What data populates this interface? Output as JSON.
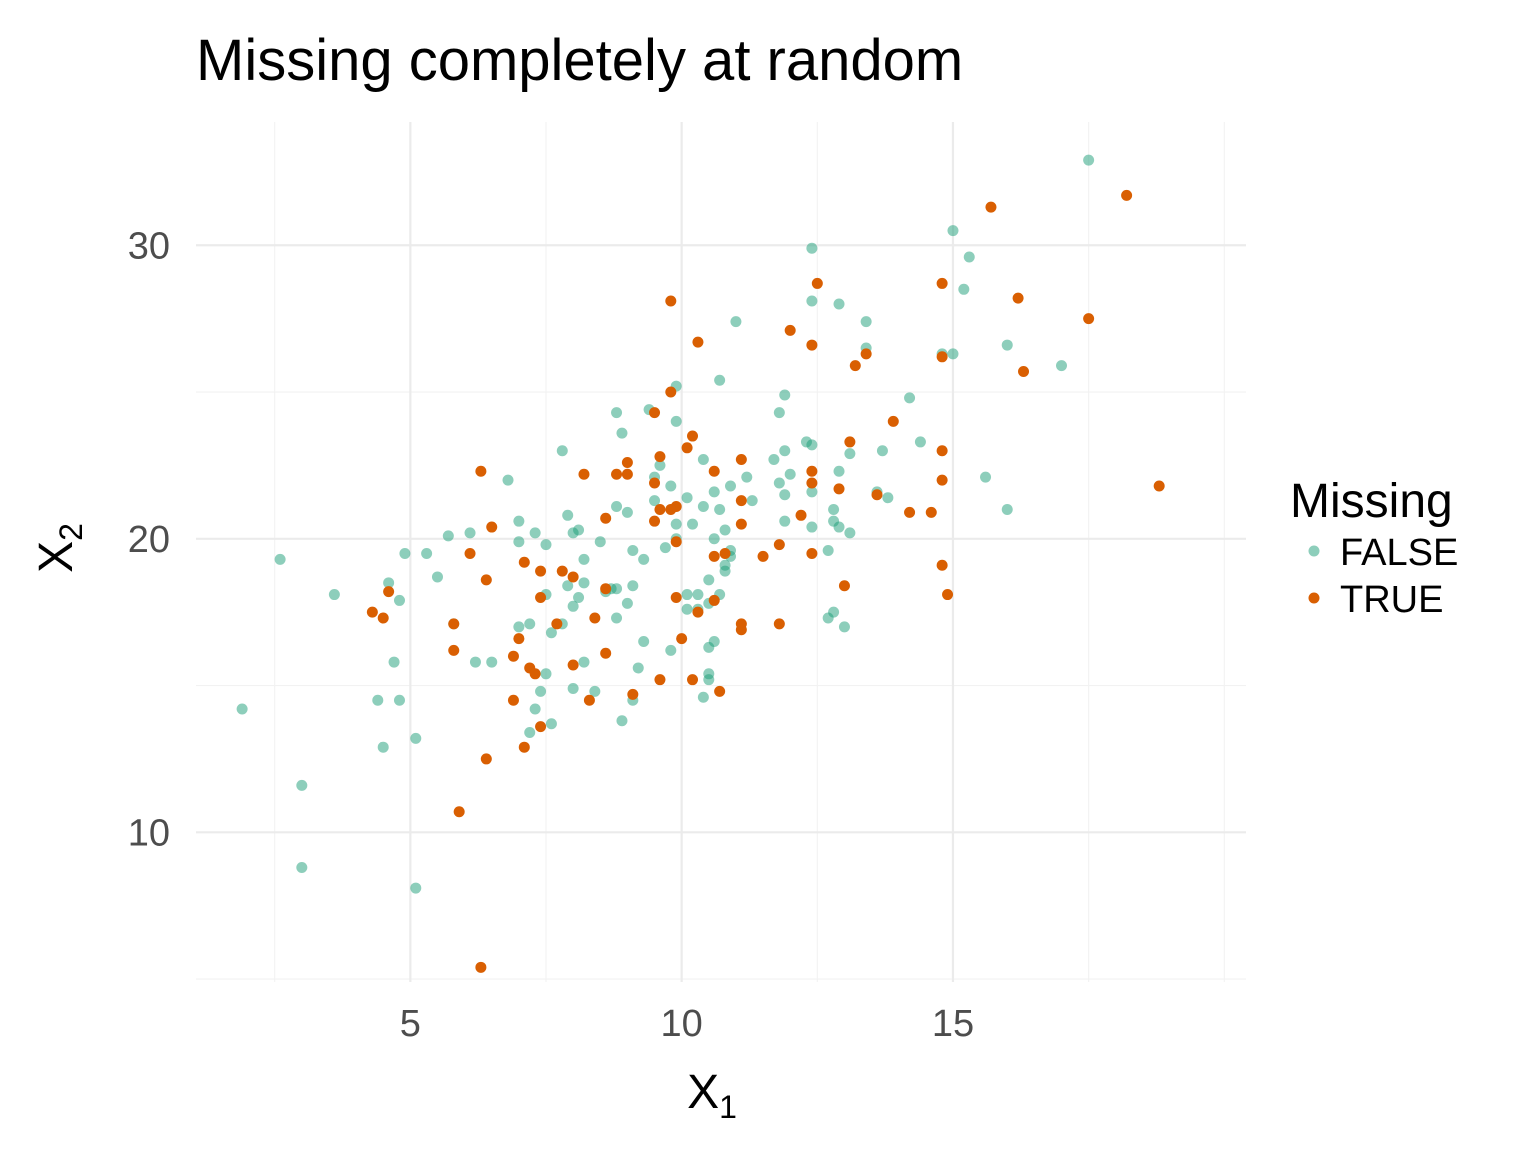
{
  "chart_data": {
    "type": "scatter",
    "title": "Missing completely at random",
    "xlabel": {
      "base": "X",
      "sub": "1"
    },
    "ylabel": {
      "base": "X",
      "sub": "2"
    },
    "xlim": [
      1.05,
      20.4
    ],
    "ylim": [
      4.9,
      34.2
    ],
    "x_ticks": [
      5,
      10,
      15
    ],
    "y_ticks": [
      10,
      20,
      30
    ],
    "x_tick_labels": [
      "5",
      "10",
      "15"
    ],
    "y_tick_labels": [
      "10",
      "20",
      "30"
    ],
    "grid": true,
    "legend_position": "right",
    "legend_title": "Missing",
    "series": [
      {
        "name": "FALSE",
        "color": "#1b9e77",
        "opacity": 0.5,
        "points": [
          [
            17.5,
            32.9
          ],
          [
            15.0,
            30.5
          ],
          [
            15.3,
            29.6
          ],
          [
            12.4,
            29.9
          ],
          [
            15.2,
            28.5
          ],
          [
            12.4,
            28.1
          ],
          [
            12.9,
            28.0
          ],
          [
            11.0,
            27.4
          ],
          [
            13.4,
            27.4
          ],
          [
            16.0,
            26.6
          ],
          [
            13.4,
            26.5
          ],
          [
            14.8,
            26.3
          ],
          [
            15.0,
            26.3
          ],
          [
            17.0,
            25.9
          ],
          [
            10.7,
            25.4
          ],
          [
            9.9,
            25.2
          ],
          [
            11.9,
            24.9
          ],
          [
            14.2,
            24.8
          ],
          [
            9.4,
            24.4
          ],
          [
            8.8,
            24.3
          ],
          [
            11.8,
            24.3
          ],
          [
            9.9,
            24.0
          ],
          [
            8.9,
            23.6
          ],
          [
            12.3,
            23.3
          ],
          [
            12.4,
            23.2
          ],
          [
            14.4,
            23.3
          ],
          [
            7.8,
            23.0
          ],
          [
            11.9,
            23.0
          ],
          [
            13.7,
            23.0
          ],
          [
            13.1,
            22.9
          ],
          [
            10.4,
            22.7
          ],
          [
            11.7,
            22.7
          ],
          [
            9.6,
            22.5
          ],
          [
            12.9,
            22.3
          ],
          [
            6.8,
            22.0
          ],
          [
            9.5,
            22.1
          ],
          [
            11.2,
            22.1
          ],
          [
            12.0,
            22.2
          ],
          [
            15.6,
            22.1
          ],
          [
            9.8,
            21.8
          ],
          [
            11.8,
            21.9
          ],
          [
            10.9,
            21.8
          ],
          [
            10.6,
            21.6
          ],
          [
            11.9,
            21.5
          ],
          [
            13.6,
            21.6
          ],
          [
            12.4,
            21.6
          ],
          [
            13.8,
            21.4
          ],
          [
            9.5,
            21.3
          ],
          [
            10.1,
            21.4
          ],
          [
            11.3,
            21.3
          ],
          [
            8.8,
            21.1
          ],
          [
            10.4,
            21.1
          ],
          [
            10.7,
            21.0
          ],
          [
            12.8,
            21.0
          ],
          [
            16.0,
            21.0
          ],
          [
            9.0,
            20.9
          ],
          [
            7.9,
            20.8
          ],
          [
            7.0,
            20.6
          ],
          [
            11.9,
            20.6
          ],
          [
            12.8,
            20.6
          ],
          [
            9.9,
            20.5
          ],
          [
            10.2,
            20.5
          ],
          [
            12.4,
            20.4
          ],
          [
            12.9,
            20.4
          ],
          [
            7.3,
            20.2
          ],
          [
            6.1,
            20.2
          ],
          [
            8.1,
            20.3
          ],
          [
            10.8,
            20.3
          ],
          [
            13.1,
            20.2
          ],
          [
            8.0,
            20.2
          ],
          [
            5.7,
            20.1
          ],
          [
            8.5,
            19.9
          ],
          [
            9.9,
            20.0
          ],
          [
            10.6,
            20.0
          ],
          [
            7.0,
            19.9
          ],
          [
            7.5,
            19.8
          ],
          [
            9.7,
            19.7
          ],
          [
            9.1,
            19.6
          ],
          [
            12.7,
            19.6
          ],
          [
            10.9,
            19.6
          ],
          [
            4.9,
            19.5
          ],
          [
            5.3,
            19.5
          ],
          [
            8.2,
            19.3
          ],
          [
            9.3,
            19.3
          ],
          [
            10.9,
            19.4
          ],
          [
            2.6,
            19.3
          ],
          [
            10.8,
            19.1
          ],
          [
            10.8,
            18.9
          ],
          [
            5.5,
            18.7
          ],
          [
            10.5,
            18.6
          ],
          [
            7.9,
            18.4
          ],
          [
            4.6,
            18.5
          ],
          [
            8.2,
            18.5
          ],
          [
            9.1,
            18.4
          ],
          [
            8.7,
            18.3
          ],
          [
            8.6,
            18.2
          ],
          [
            8.8,
            18.3
          ],
          [
            3.6,
            18.1
          ],
          [
            7.5,
            18.1
          ],
          [
            8.1,
            18.0
          ],
          [
            10.1,
            18.1
          ],
          [
            10.3,
            18.1
          ],
          [
            10.7,
            18.1
          ],
          [
            4.8,
            17.9
          ],
          [
            9.0,
            17.8
          ],
          [
            10.5,
            17.8
          ],
          [
            8.0,
            17.7
          ],
          [
            10.1,
            17.6
          ],
          [
            10.3,
            17.6
          ],
          [
            12.8,
            17.5
          ],
          [
            12.7,
            17.3
          ],
          [
            8.8,
            17.3
          ],
          [
            7.2,
            17.1
          ],
          [
            7.8,
            17.1
          ],
          [
            5.8,
            17.1
          ],
          [
            7.0,
            17.0
          ],
          [
            13.0,
            17.0
          ],
          [
            7.6,
            16.8
          ],
          [
            9.3,
            16.5
          ],
          [
            10.6,
            16.5
          ],
          [
            10.5,
            16.3
          ],
          [
            9.8,
            16.2
          ],
          [
            4.7,
            15.8
          ],
          [
            6.2,
            15.8
          ],
          [
            6.5,
            15.8
          ],
          [
            8.2,
            15.8
          ],
          [
            9.2,
            15.6
          ],
          [
            7.5,
            15.4
          ],
          [
            10.5,
            15.4
          ],
          [
            10.5,
            15.2
          ],
          [
            8.0,
            14.9
          ],
          [
            8.4,
            14.8
          ],
          [
            4.4,
            14.5
          ],
          [
            4.8,
            14.5
          ],
          [
            9.1,
            14.5
          ],
          [
            10.4,
            14.6
          ],
          [
            7.4,
            14.8
          ],
          [
            7.3,
            14.2
          ],
          [
            1.9,
            14.2
          ],
          [
            8.9,
            13.8
          ],
          [
            7.6,
            13.7
          ],
          [
            7.2,
            13.4
          ],
          [
            5.1,
            13.2
          ],
          [
            4.5,
            12.9
          ],
          [
            3.0,
            11.6
          ],
          [
            3.0,
            8.8
          ],
          [
            5.1,
            8.1
          ]
        ]
      },
      {
        "name": "TRUE",
        "color": "#d95f02",
        "opacity": 1.0,
        "points": [
          [
            18.2,
            31.7
          ],
          [
            15.7,
            31.3
          ],
          [
            12.5,
            28.7
          ],
          [
            14.8,
            28.7
          ],
          [
            9.8,
            28.1
          ],
          [
            16.2,
            28.2
          ],
          [
            17.5,
            27.5
          ],
          [
            12.0,
            27.1
          ],
          [
            10.3,
            26.7
          ],
          [
            12.4,
            26.6
          ],
          [
            13.4,
            26.3
          ],
          [
            14.8,
            26.2
          ],
          [
            13.2,
            25.9
          ],
          [
            16.3,
            25.7
          ],
          [
            9.8,
            25.0
          ],
          [
            9.5,
            24.3
          ],
          [
            13.9,
            24.0
          ],
          [
            10.2,
            23.5
          ],
          [
            13.1,
            23.3
          ],
          [
            10.1,
            23.1
          ],
          [
            14.8,
            23.0
          ],
          [
            9.6,
            22.8
          ],
          [
            11.1,
            22.7
          ],
          [
            6.3,
            22.3
          ],
          [
            9.0,
            22.6
          ],
          [
            8.2,
            22.2
          ],
          [
            9.0,
            22.2
          ],
          [
            8.8,
            22.2
          ],
          [
            10.6,
            22.3
          ],
          [
            12.4,
            22.3
          ],
          [
            14.8,
            22.0
          ],
          [
            9.5,
            21.9
          ],
          [
            12.4,
            21.9
          ],
          [
            18.8,
            21.8
          ],
          [
            12.9,
            21.7
          ],
          [
            13.6,
            21.5
          ],
          [
            11.1,
            21.3
          ],
          [
            9.9,
            21.1
          ],
          [
            9.6,
            21.0
          ],
          [
            9.8,
            21.0
          ],
          [
            14.2,
            20.9
          ],
          [
            14.6,
            20.9
          ],
          [
            12.2,
            20.8
          ],
          [
            8.6,
            20.7
          ],
          [
            9.5,
            20.6
          ],
          [
            11.1,
            20.5
          ],
          [
            6.5,
            20.4
          ],
          [
            9.9,
            19.9
          ],
          [
            11.8,
            19.8
          ],
          [
            6.1,
            19.5
          ],
          [
            10.6,
            19.4
          ],
          [
            10.8,
            19.5
          ],
          [
            11.5,
            19.4
          ],
          [
            12.4,
            19.5
          ],
          [
            7.1,
            19.2
          ],
          [
            14.8,
            19.1
          ],
          [
            7.4,
            18.9
          ],
          [
            7.8,
            18.9
          ],
          [
            8.0,
            18.7
          ],
          [
            6.4,
            18.6
          ],
          [
            13.0,
            18.4
          ],
          [
            8.6,
            18.3
          ],
          [
            4.6,
            18.2
          ],
          [
            14.9,
            18.1
          ],
          [
            7.4,
            18.0
          ],
          [
            9.9,
            18.0
          ],
          [
            10.6,
            17.9
          ],
          [
            10.3,
            17.5
          ],
          [
            4.3,
            17.5
          ],
          [
            4.5,
            17.3
          ],
          [
            8.4,
            17.3
          ],
          [
            11.1,
            17.1
          ],
          [
            11.8,
            17.1
          ],
          [
            5.8,
            17.1
          ],
          [
            7.7,
            17.1
          ],
          [
            11.1,
            16.9
          ],
          [
            7.0,
            16.6
          ],
          [
            10.0,
            16.6
          ],
          [
            5.8,
            16.2
          ],
          [
            8.6,
            16.1
          ],
          [
            6.9,
            16.0
          ],
          [
            8.0,
            15.7
          ],
          [
            7.2,
            15.6
          ],
          [
            7.3,
            15.4
          ],
          [
            9.6,
            15.2
          ],
          [
            10.2,
            15.2
          ],
          [
            9.1,
            14.7
          ],
          [
            10.7,
            14.8
          ],
          [
            6.9,
            14.5
          ],
          [
            8.3,
            14.5
          ],
          [
            7.4,
            13.6
          ],
          [
            7.1,
            12.9
          ],
          [
            6.4,
            12.5
          ],
          [
            5.9,
            10.7
          ],
          [
            6.3,
            5.4
          ]
        ]
      }
    ]
  }
}
